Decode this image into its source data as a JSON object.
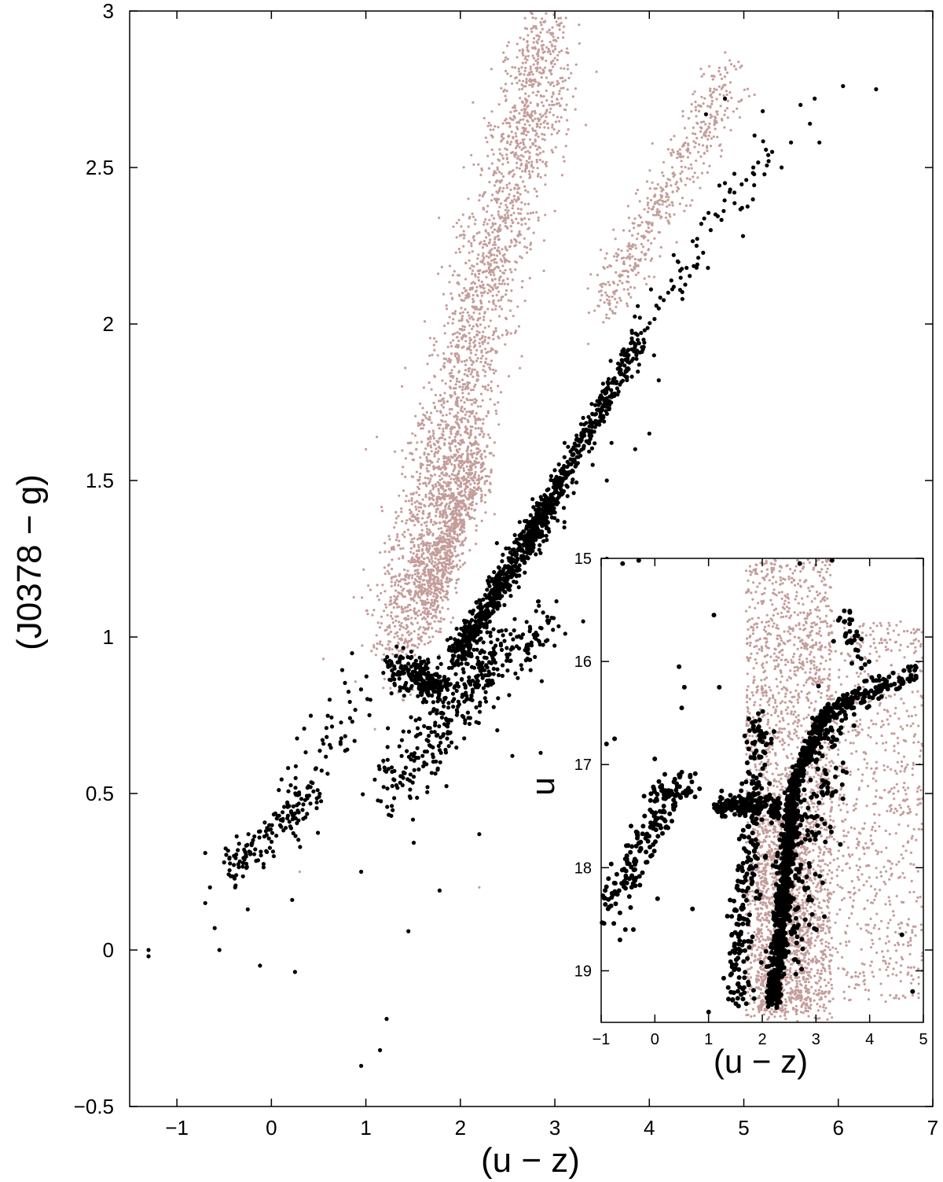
{
  "chart_data": [
    {
      "type": "scatter",
      "title": "",
      "xlabel": "(u − z)",
      "ylabel": "(J0378 − g)",
      "xlim": [
        -1.5,
        7
      ],
      "ylim": [
        -0.5,
        3
      ],
      "xticks": [
        -1,
        0,
        1,
        2,
        3,
        4,
        5,
        6,
        7
      ],
      "xtick_labels": [
        "−1",
        "0",
        "1",
        "2",
        "3",
        "4",
        "5",
        "6",
        "7"
      ],
      "yticks": [
        -0.5,
        0,
        0.5,
        1,
        1.5,
        2,
        2.5,
        3
      ],
      "ytick_labels": [
        "−0.5",
        "0",
        "0.5",
        "1",
        "1.5",
        "2",
        "2.5",
        "3"
      ],
      "grid": false,
      "legend": "none",
      "colors": {
        "field_stars": "#c49d9a",
        "members": "#000000"
      },
      "series": [
        {
          "color": "#c49d9a",
          "marker": "small-dot",
          "points": [
            [
              2.55,
              2.82
            ],
            [
              2.6,
              2.77
            ],
            [
              2.65,
              2.82
            ],
            [
              2.2,
              2.17
            ],
            [
              1.3,
              1.35
            ],
            [
              0.55,
              0.93
            ],
            [
              1.0,
              1.6
            ],
            [
              1.2,
              1.3
            ],
            [
              0.3,
              0.25
            ],
            [
              2.2,
              0.2
            ]
          ],
          "distribution": [
            {
              "x0": 1.3,
              "y0": 0.95,
              "x1": 2.95,
              "y1": 2.95,
              "n": 2400,
              "spread": 0.17
            },
            {
              "x0": 1.6,
              "y0": 1.08,
              "x1": 2.2,
              "y1": 1.6,
              "n": 900,
              "spread": 0.1
            },
            {
              "x0": 3.5,
              "y0": 2.05,
              "x1": 4.9,
              "y1": 2.8,
              "n": 500,
              "spread": 0.1
            }
          ]
        },
        {
          "color": "#000000",
          "marker": "dot",
          "points": [
            [
              -1.3,
              -0.02
            ],
            [
              -1.3,
              0.0
            ],
            [
              -0.7,
              0.31
            ],
            [
              -0.7,
              0.15
            ],
            [
              -0.6,
              0.07
            ],
            [
              -0.55,
              0.0
            ],
            [
              -0.65,
              0.2
            ],
            [
              -0.5,
              0.28
            ],
            [
              -0.25,
              0.13
            ],
            [
              -0.12,
              -0.05
            ],
            [
              0.25,
              -0.07
            ],
            [
              0.22,
              0.16
            ],
            [
              0.95,
              -0.37
            ],
            [
              1.15,
              -0.32
            ],
            [
              1.22,
              -0.22
            ],
            [
              1.45,
              0.06
            ],
            [
              0.95,
              0.25
            ],
            [
              1.78,
              0.19
            ],
            [
              2.2,
              0.37
            ],
            [
              2.85,
              0.63
            ],
            [
              2.55,
              0.62
            ],
            [
              4.6,
              2.67
            ],
            [
              4.8,
              2.72
            ],
            [
              5.2,
              2.68
            ],
            [
              5.6,
              2.7
            ],
            [
              5.75,
              2.72
            ],
            [
              5.7,
              2.64
            ],
            [
              5.8,
              2.58
            ],
            [
              6.05,
              2.76
            ],
            [
              6.4,
              2.75
            ],
            [
              5.3,
              2.55
            ],
            [
              5.4,
              2.5
            ],
            [
              5.5,
              2.58
            ],
            [
              4.8,
              2.45
            ],
            [
              4.9,
              2.42
            ],
            [
              5.1,
              2.5
            ],
            [
              4.7,
              2.35
            ],
            [
              4.55,
              2.32
            ],
            [
              4.5,
              2.25
            ],
            [
              4.3,
              2.2
            ],
            [
              4.65,
              2.3
            ],
            [
              4.9,
              2.48
            ],
            [
              4.5,
              2.18
            ],
            [
              4.2,
              2.1
            ],
            [
              4.35,
              2.08
            ],
            [
              4.1,
              2.05
            ],
            [
              3.9,
              2.02
            ],
            [
              3.95,
              1.98
            ],
            [
              4.05,
              1.9
            ],
            [
              3.75,
              1.85
            ],
            [
              4.1,
              1.82
            ],
            [
              3.3,
              1.7
            ],
            [
              3.6,
              1.62
            ],
            [
              4.0,
              1.65
            ],
            [
              3.85,
              1.6
            ],
            [
              3.4,
              1.55
            ],
            [
              3.2,
              1.46
            ],
            [
              3.55,
              1.5
            ],
            [
              3.1,
              1.35
            ],
            [
              3.3,
              1.05
            ],
            [
              3.55,
              1.25
            ],
            [
              4.0,
              1.2
            ]
          ],
          "distribution": [
            {
              "x0": -0.45,
              "y0": 0.26,
              "x1": 0.5,
              "y1": 0.5,
              "n": 140,
              "spread": 0.07
            },
            {
              "x0": 0.15,
              "y0": 0.42,
              "x1": 1.0,
              "y1": 0.86,
              "n": 60,
              "spread": 0.09
            },
            {
              "x0": 1.2,
              "y0": 0.5,
              "x1": 2.4,
              "y1": 0.95,
              "n": 260,
              "spread": 0.12
            },
            {
              "x0": 1.25,
              "y0": 0.9,
              "x1": 1.85,
              "y1": 0.84,
              "n": 230,
              "spread": 0.05
            },
            {
              "x0": 1.95,
              "y0": 0.93,
              "x1": 3.0,
              "y1": 1.45,
              "n": 650,
              "spread": 0.05
            },
            {
              "x0": 2.7,
              "y0": 1.3,
              "x1": 3.9,
              "y1": 1.95,
              "n": 420,
              "spread": 0.04
            },
            {
              "x0": 3.8,
              "y0": 1.95,
              "x1": 5.3,
              "y1": 2.55,
              "n": 60,
              "spread": 0.06
            },
            {
              "x0": 2.0,
              "y0": 0.85,
              "x1": 3.0,
              "y1": 1.05,
              "n": 140,
              "spread": 0.08
            }
          ]
        }
      ]
    },
    {
      "type": "scatter",
      "title": "",
      "xlabel": "(u − z)",
      "ylabel": "u",
      "xlim": [
        -1,
        5
      ],
      "ylim": [
        19.5,
        15
      ],
      "xticks": [
        -1,
        0,
        1,
        2,
        3,
        4,
        5
      ],
      "xtick_labels": [
        "−1",
        "0",
        "1",
        "2",
        "3",
        "4",
        "5"
      ],
      "yticks": [
        15,
        16,
        17,
        18,
        19
      ],
      "ytick_labels": [
        "15",
        "16",
        "17",
        "18",
        "19"
      ],
      "grid": false,
      "legend": "none",
      "colors": {
        "field_stars": "#c49d9a",
        "members": "#000000"
      },
      "series": [
        {
          "color": "#c49d9a",
          "marker": "small-dot",
          "points": [],
          "distribution": [
            {
              "xmin": 1.7,
              "xmax": 3.3,
              "ymin": 15.0,
              "ymax": 19.5,
              "n": 1800,
              "mode": "uniform"
            },
            {
              "xmin": 2.8,
              "xmax": 5.0,
              "ymin": 15.6,
              "ymax": 19.3,
              "n": 900,
              "mode": "uniform"
            },
            {
              "xmin": 1.9,
              "xmax": 2.9,
              "ymin": 17.5,
              "ymax": 19.4,
              "n": 800,
              "mode": "uniform"
            }
          ]
        },
        {
          "color": "#000000",
          "marker": "dot",
          "points": [
            [
              -0.6,
              15.05
            ],
            [
              -0.3,
              15.02
            ],
            [
              3.3,
              15.02
            ],
            [
              2.7,
              15.05
            ],
            [
              1.1,
              15.55
            ],
            [
              0.45,
              16.05
            ],
            [
              0.55,
              16.25
            ],
            [
              0.5,
              16.45
            ],
            [
              -0.9,
              16.8
            ],
            [
              -0.75,
              16.75
            ],
            [
              -0.65,
              18.7
            ],
            [
              -0.55,
              18.6
            ],
            [
              -0.4,
              18.6
            ],
            [
              0.05,
              18.3
            ],
            [
              0.7,
              18.4
            ],
            [
              1.0,
              19.4
            ],
            [
              1.4,
              19.5
            ],
            [
              4.6,
              18.65
            ],
            [
              4.8,
              19.2
            ],
            [
              1.2,
              16.25
            ]
          ],
          "distribution": [
            {
              "x0": -1.0,
              "y0": 18.5,
              "x1": 0.3,
              "y1": 17.3,
              "n": 150,
              "spread": 0.15
            },
            {
              "x0": 0.0,
              "y0": 17.3,
              "x1": 0.7,
              "y1": 17.2,
              "n": 60,
              "spread": 0.12
            },
            {
              "x0": 1.2,
              "y0": 17.4,
              "x1": 2.3,
              "y1": 17.4,
              "n": 160,
              "spread": 0.08
            },
            {
              "x0": 2.2,
              "y0": 19.3,
              "x1": 2.6,
              "y1": 17.2,
              "n": 700,
              "spread": 0.07
            },
            {
              "x0": 2.55,
              "y0": 17.2,
              "x1": 3.2,
              "y1": 16.5,
              "n": 220,
              "spread": 0.06
            },
            {
              "x0": 3.2,
              "y0": 16.5,
              "x1": 4.9,
              "y1": 16.1,
              "n": 140,
              "spread": 0.08
            },
            {
              "x0": 1.5,
              "y0": 19.3,
              "x1": 2.0,
              "y1": 16.5,
              "n": 250,
              "spread": 0.12
            },
            {
              "x0": 2.4,
              "y0": 19.0,
              "x1": 3.3,
              "y1": 16.5,
              "n": 200,
              "spread": 0.2
            },
            {
              "x0": 3.5,
              "y0": 15.5,
              "x1": 4.0,
              "y1": 16.3,
              "n": 40,
              "spread": 0.12
            }
          ]
        }
      ]
    }
  ]
}
